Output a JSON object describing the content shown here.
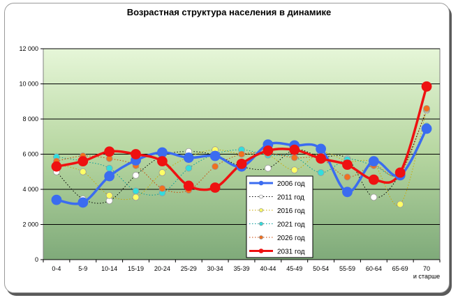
{
  "chart_data": {
    "type": "line",
    "title": "Возрастная структура населения в динамике",
    "categories": [
      "0-4",
      "5-9",
      "10-14",
      "15-19",
      "20-24",
      "25-29",
      "30-34",
      "35-39",
      "40-44",
      "45-49",
      "50-54",
      "55-59",
      "60-64",
      "65-69",
      "70 и старше"
    ],
    "yticks": [
      "0",
      "2 000",
      "4 000",
      "6 000",
      "8 000",
      "10 000",
      "12 000"
    ],
    "ylim": [
      0,
      12000
    ],
    "grid": true,
    "legend_position": "inside-bottom-center",
    "series": [
      {
        "name": "2006 год",
        "color": "#3b6cf0",
        "style": "solid-thick",
        "marker_color": "#3b6cf0",
        "values": [
          3400,
          3250,
          4750,
          5650,
          6100,
          5800,
          5900,
          5300,
          6550,
          6500,
          6300,
          3850,
          5600,
          4800,
          7450
        ]
      },
      {
        "name": "2011 год",
        "color": "#000000",
        "style": "dotted",
        "marker_color": "#ffffff",
        "values": [
          5000,
          3450,
          3350,
          4800,
          5900,
          6150,
          5950,
          5300,
          5200,
          6250,
          5850,
          5750,
          3550,
          4900,
          8500
        ]
      },
      {
        "name": "2016 год",
        "color": "#c9a800",
        "style": "dotted",
        "marker_color": "#ffff66",
        "values": [
          5400,
          5000,
          3650,
          3550,
          4950,
          5850,
          6250,
          6000,
          5950,
          5100,
          6100,
          5600,
          5450,
          3150,
          8550
        ]
      },
      {
        "name": "2021 год",
        "color": "#009a9a",
        "style": "dotted",
        "marker_color": "#33dddd",
        "values": [
          5850,
          5600,
          5200,
          3900,
          3800,
          5200,
          6000,
          6250,
          5950,
          5850,
          4950,
          5700,
          5350,
          4850,
          7600
        ]
      },
      {
        "name": "2026 год",
        "color": "#cc4400",
        "style": "dotted",
        "marker_color": "#f07020",
        "values": [
          5600,
          5900,
          5750,
          5350,
          4050,
          3950,
          5300,
          6000,
          6050,
          5800,
          5750,
          4700,
          5350,
          4900,
          8600
        ]
      },
      {
        "name": "2031 год",
        "color": "#ee1111",
        "style": "solid-thick",
        "marker_color": "#ee1111",
        "values": [
          5300,
          5600,
          6150,
          6000,
          5600,
          4200,
          4100,
          5450,
          6200,
          6250,
          5750,
          5400,
          4550,
          4950,
          9850
        ]
      }
    ]
  }
}
